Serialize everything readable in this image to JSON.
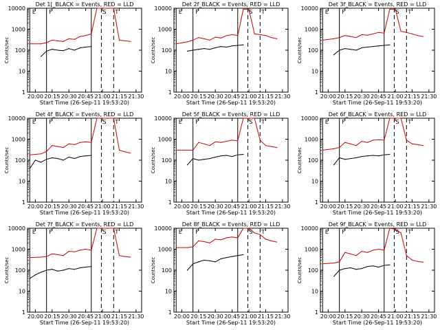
{
  "chart_data": [
    {
      "type": "line",
      "title": "Det 1[_BLACK = Events, RED = LLD",
      "xlabel": "Start Time (26-Sep-11 19:53:20)",
      "ylabel": "Counts/sec",
      "x_tick_labels": [
        "20:00",
        "20:15",
        "20:30",
        "20:45",
        "21:00",
        "21:15",
        "21:30"
      ],
      "y_tick_labels": [
        "1",
        "10",
        "100",
        "1000",
        "10000"
      ],
      "ylim": [
        1,
        10000
      ],
      "y_scale": "log",
      "series": [
        {
          "color": "#000000",
          "x": [
            "20:05",
            "20:10",
            "20:15",
            "20:20",
            "20:25",
            "20:30",
            "20:35",
            "20:40",
            "20:45",
            "20:50"
          ],
          "values": [
            50,
            90,
            110,
            100,
            95,
            120,
            100,
            130,
            140,
            150
          ]
        },
        {
          "color": "#cc0000",
          "x": [
            "19:55",
            "20:05",
            "20:10",
            "20:15",
            "20:20",
            "20:25",
            "20:30",
            "20:35",
            "20:40",
            "20:45",
            "20:50",
            "20:55",
            "21:00",
            "21:05",
            "21:10",
            "21:15",
            "21:20",
            "21:25"
          ],
          "values": [
            200,
            200,
            230,
            300,
            280,
            260,
            350,
            330,
            450,
            500,
            600,
            10000,
            10000,
            10000,
            10000,
            300,
            280,
            260
          ]
        }
      ],
      "markers": [
        "E",
        "F",
        "S",
        "T"
      ]
    },
    {
      "type": "line",
      "title": "Det 2f_BLACK = Events, RED = LLD",
      "xlabel": "Start Time (26-Sep-11 19:53:20)",
      "ylabel": "Counts/sec",
      "x_tick_labels": [
        "20:00",
        "20:15",
        "20:30",
        "20:45",
        "21:00",
        "21:15",
        "21:30"
      ],
      "y_tick_labels": [
        "1",
        "10",
        "100",
        "1000",
        "10000"
      ],
      "ylim": [
        1,
        10000
      ],
      "y_scale": "log",
      "series": [
        {
          "color": "#000000",
          "x": [
            "20:05",
            "20:10",
            "20:15",
            "20:20",
            "20:25",
            "20:30",
            "20:35",
            "20:40",
            "20:45",
            "20:50",
            "20:55"
          ],
          "values": [
            90,
            100,
            110,
            120,
            110,
            130,
            150,
            140,
            160,
            170,
            180
          ]
        },
        {
          "color": "#cc0000",
          "x": [
            "19:55",
            "20:05",
            "20:10",
            "20:15",
            "20:20",
            "20:25",
            "20:30",
            "20:35",
            "20:40",
            "20:45",
            "20:50",
            "20:55",
            "21:00",
            "21:05",
            "21:10",
            "21:15",
            "21:20",
            "21:25"
          ],
          "values": [
            200,
            250,
            300,
            400,
            350,
            300,
            420,
            380,
            500,
            550,
            500,
            9000,
            9000,
            600,
            550,
            500,
            400,
            350
          ]
        }
      ],
      "markers": [
        "E",
        "F",
        "S",
        "T"
      ]
    },
    {
      "type": "line",
      "title": "Det 3f_BLACK = Events, RED = LLD",
      "xlabel": "Start Time (26-Sep-11 19:53:20)",
      "ylabel": "Counts/sec",
      "x_tick_labels": [
        "20:00",
        "20:15",
        "20:30",
        "20:45",
        "21:00",
        "21:15",
        "21:30"
      ],
      "y_tick_labels": [
        "1",
        "10",
        "100",
        "1000",
        "10000"
      ],
      "ylim": [
        1,
        10000
      ],
      "y_scale": "log",
      "series": [
        {
          "color": "#000000",
          "x": [
            "20:05",
            "20:10",
            "20:15",
            "20:20",
            "20:25",
            "20:30",
            "20:35",
            "20:40",
            "20:45",
            "20:50",
            "20:55"
          ],
          "values": [
            60,
            100,
            120,
            110,
            100,
            130,
            140,
            150,
            160,
            170,
            180
          ]
        },
        {
          "color": "#cc0000",
          "x": [
            "19:55",
            "20:05",
            "20:10",
            "20:15",
            "20:20",
            "20:25",
            "20:30",
            "20:35",
            "20:40",
            "20:45",
            "20:50",
            "20:55",
            "21:00",
            "21:05",
            "21:10",
            "21:15",
            "21:20",
            "21:25"
          ],
          "values": [
            300,
            350,
            400,
            500,
            450,
            400,
            550,
            520,
            600,
            700,
            650,
            9000,
            9000,
            800,
            700,
            600,
            500,
            450
          ]
        }
      ],
      "markers": [
        "E",
        "F",
        "S",
        "T"
      ]
    },
    {
      "type": "line",
      "title": "Det 4f_BLACK = Events, RED = LLD",
      "xlabel": "Start Time (26-Sep-11 19:53:20)",
      "ylabel": "Counts/sec",
      "x_tick_labels": [
        "20:00",
        "20:15",
        "20:30",
        "20:45",
        "21:00",
        "21:15",
        "21:30"
      ],
      "y_tick_labels": [
        "1",
        "10",
        "100",
        "1000",
        "10000"
      ],
      "ylim": [
        1,
        10000
      ],
      "y_scale": "log",
      "series": [
        {
          "color": "#000000",
          "x": [
            "19:55",
            "20:00",
            "20:05",
            "20:10",
            "20:15",
            "20:20",
            "20:25",
            "20:30",
            "20:35",
            "20:40",
            "20:45",
            "20:50"
          ],
          "values": [
            40,
            100,
            80,
            110,
            130,
            120,
            100,
            140,
            120,
            150,
            160,
            170
          ]
        },
        {
          "color": "#cc0000",
          "x": [
            "19:55",
            "20:05",
            "20:10",
            "20:15",
            "20:20",
            "20:25",
            "20:30",
            "20:35",
            "20:40",
            "20:45",
            "20:50",
            "20:55",
            "21:00",
            "21:05",
            "21:10",
            "21:15",
            "21:20",
            "21:25"
          ],
          "values": [
            180,
            200,
            260,
            500,
            450,
            400,
            600,
            550,
            700,
            750,
            700,
            10000,
            10000,
            10000,
            10000,
            300,
            250,
            220
          ]
        }
      ],
      "markers": [
        "E",
        "F",
        "S",
        "T"
      ]
    },
    {
      "type": "line",
      "title": "Det 5f_BLACK = Events, RED = LLD",
      "xlabel": "Start Time (26-Sep-11 19:53:20)",
      "ylabel": "Counts/sec",
      "x_tick_labels": [
        "20:00",
        "20:15",
        "20:30",
        "20:45",
        "21:00",
        "21:15",
        "21:30"
      ],
      "y_tick_labels": [
        "1",
        "10",
        "100",
        "1000",
        "10000"
      ],
      "ylim": [
        1,
        10000
      ],
      "y_scale": "log",
      "series": [
        {
          "color": "#000000",
          "x": [
            "20:05",
            "20:10",
            "20:15",
            "20:20",
            "20:25",
            "20:30",
            "20:35",
            "20:40",
            "20:45",
            "20:50",
            "20:55"
          ],
          "values": [
            60,
            120,
            100,
            110,
            120,
            140,
            160,
            170,
            150,
            180,
            190
          ]
        },
        {
          "color": "#cc0000",
          "x": [
            "19:55",
            "20:05",
            "20:10",
            "20:15",
            "20:20",
            "20:25",
            "20:30",
            "20:35",
            "20:40",
            "20:45",
            "20:50",
            "20:55",
            "21:00",
            "21:05",
            "21:10",
            "21:15",
            "21:20",
            "21:25"
          ],
          "values": [
            300,
            300,
            300,
            700,
            600,
            500,
            750,
            700,
            800,
            900,
            850,
            10000,
            10000,
            10000,
            900,
            500,
            450,
            400
          ]
        }
      ],
      "markers": [
        "E",
        "F",
        "S",
        "T"
      ]
    },
    {
      "type": "line",
      "title": "Det 6f_BLACK = Events, RED = LLD",
      "xlabel": "Start Time (26-Sep-11 19:53:20)",
      "ylabel": "Counts/sec",
      "x_tick_labels": [
        "20:00",
        "20:15",
        "20:30",
        "20:45",
        "21:00",
        "21:15",
        "21:30"
      ],
      "y_tick_labels": [
        "1",
        "10",
        "100",
        "1000",
        "10000"
      ],
      "ylim": [
        1,
        10000
      ],
      "y_scale": "log",
      "series": [
        {
          "color": "#000000",
          "x": [
            "20:05",
            "20:10",
            "20:15",
            "20:20",
            "20:25",
            "20:30",
            "20:35",
            "20:40",
            "20:45",
            "20:50",
            "20:55"
          ],
          "values": [
            60,
            130,
            110,
            120,
            130,
            150,
            160,
            170,
            160,
            180,
            190
          ]
        },
        {
          "color": "#cc0000",
          "x": [
            "19:55",
            "20:05",
            "20:10",
            "20:15",
            "20:20",
            "20:25",
            "20:30",
            "20:35",
            "20:40",
            "20:45",
            "20:50",
            "20:55",
            "21:00",
            "21:05",
            "21:10",
            "21:15",
            "21:20",
            "21:25"
          ],
          "values": [
            300,
            350,
            400,
            700,
            600,
            500,
            800,
            700,
            900,
            950,
            900,
            10000,
            10000,
            10000,
            900,
            600,
            550,
            500
          ]
        }
      ],
      "markers": [
        "E",
        "F",
        "S",
        "T"
      ]
    },
    {
      "type": "line",
      "title": "Det 7f_BLACK = Events, RED = LLD",
      "xlabel": "Start Time (26-Sep-11 19:53:20)",
      "ylabel": "Counts/sec",
      "x_tick_labels": [
        "20:00",
        "20:15",
        "20:30",
        "20:45",
        "21:00",
        "21:15",
        "21:30"
      ],
      "y_tick_labels": [
        "1",
        "10",
        "100",
        "1000",
        "10000"
      ],
      "ylim": [
        1,
        10000
      ],
      "y_scale": "log",
      "series": [
        {
          "color": "#000000",
          "x": [
            "19:55",
            "20:00",
            "20:05",
            "20:10",
            "20:15",
            "20:20",
            "20:25",
            "20:30",
            "20:35",
            "20:40",
            "20:45",
            "20:50"
          ],
          "values": [
            40,
            60,
            80,
            100,
            110,
            90,
            100,
            120,
            110,
            130,
            140,
            150
          ]
        },
        {
          "color": "#cc0000",
          "x": [
            "19:55",
            "20:05",
            "20:10",
            "20:15",
            "20:20",
            "20:25",
            "20:30",
            "20:35",
            "20:40",
            "20:45",
            "20:50",
            "20:55",
            "21:00",
            "21:05",
            "21:10",
            "21:15",
            "21:20",
            "21:25"
          ],
          "values": [
            400,
            420,
            450,
            600,
            550,
            500,
            800,
            750,
            900,
            1000,
            900,
            10000,
            10000,
            10000,
            10000,
            500,
            450,
            420
          ]
        }
      ],
      "markers": [
        "E",
        "F",
        "S",
        "T"
      ]
    },
    {
      "type": "line",
      "title": "Det 8f_BLACK = Events, RED = LLD",
      "xlabel": "Start Time (26-Sep-11 19:53:20)",
      "ylabel": "Counts/sec",
      "x_tick_labels": [
        "20:00",
        "20:15",
        "20:30",
        "20:45",
        "21:00",
        "21:15",
        "21:30"
      ],
      "y_tick_labels": [
        "1",
        "10",
        "100",
        "1000",
        "10000"
      ],
      "ylim": [
        1,
        10000
      ],
      "y_scale": "log",
      "series": [
        {
          "color": "#000000",
          "x": [
            "20:05",
            "20:10",
            "20:15",
            "20:20",
            "20:25",
            "20:30",
            "20:35",
            "20:40",
            "20:45",
            "20:50",
            "20:55"
          ],
          "values": [
            100,
            200,
            250,
            300,
            280,
            250,
            350,
            400,
            450,
            500,
            550
          ]
        },
        {
          "color": "#cc0000",
          "x": [
            "19:55",
            "20:05",
            "20:10",
            "20:15",
            "20:20",
            "20:25",
            "20:30",
            "20:35",
            "20:40",
            "20:45",
            "20:50",
            "20:55",
            "21:00",
            "21:05",
            "21:10",
            "21:15",
            "21:20",
            "21:25"
          ],
          "values": [
            1200,
            1200,
            1300,
            2500,
            2300,
            2000,
            3000,
            2800,
            3500,
            3800,
            3500,
            10000,
            10000,
            6000,
            5000,
            3000,
            2500,
            2200
          ]
        }
      ],
      "markers": [
        "E",
        "F",
        "S",
        "T"
      ]
    },
    {
      "type": "line",
      "title": "Det 9f_BLACK = Events, RED = LLD",
      "xlabel": "Start Time (26-Sep-11 19:53:20)",
      "ylabel": "Counts/sec",
      "x_tick_labels": [
        "20:00",
        "20:15",
        "20:30",
        "20:45",
        "21:00",
        "21:15",
        "21:30"
      ],
      "y_tick_labels": [
        "1",
        "10",
        "100",
        "1000",
        "10000"
      ],
      "ylim": [
        1,
        10000
      ],
      "y_scale": "log",
      "series": [
        {
          "color": "#000000",
          "x": [
            "20:05",
            "20:10",
            "20:15",
            "20:20",
            "20:25",
            "20:30",
            "20:35",
            "20:40",
            "20:45",
            "20:50",
            "20:55"
          ],
          "values": [
            50,
            100,
            120,
            130,
            110,
            120,
            150,
            160,
            140,
            170,
            180
          ]
        },
        {
          "color": "#cc0000",
          "x": [
            "19:55",
            "20:05",
            "20:10",
            "20:15",
            "20:20",
            "20:25",
            "20:30",
            "20:35",
            "20:40",
            "20:45",
            "20:50",
            "20:55",
            "21:00",
            "21:05",
            "21:10",
            "21:15",
            "21:20",
            "21:25"
          ],
          "values": [
            200,
            220,
            250,
            700,
            600,
            500,
            800,
            700,
            900,
            1000,
            900,
            10000,
            9000,
            6000,
            500,
            300,
            260,
            240
          ]
        }
      ],
      "markers": [
        "E",
        "F",
        "S",
        "T"
      ]
    }
  ]
}
